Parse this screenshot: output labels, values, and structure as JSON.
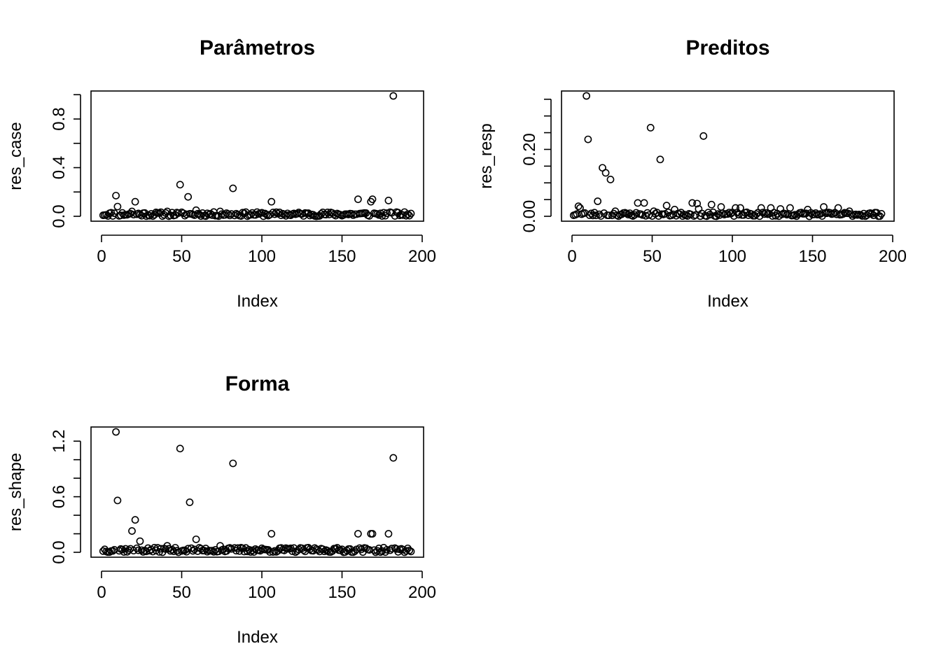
{
  "chart_data": [
    {
      "type": "scatter",
      "title": "Parâmetros",
      "xlabel": "Index",
      "ylabel": "res_case",
      "xlim": [
        0,
        193
      ],
      "ylim": [
        0,
        0.99
      ],
      "x_ticks": [
        0,
        50,
        100,
        150,
        200
      ],
      "x_tick_labels": [
        "0",
        "50",
        "100",
        "150",
        "200"
      ],
      "y_ticks": [
        0,
        0.2,
        0.4,
        0.6,
        0.8,
        1.0
      ],
      "y_tick_labels": [
        "0.0",
        "",
        "0.4",
        "",
        "0.8",
        ""
      ],
      "baseline_seed": 11,
      "baseline_max": 0.035,
      "outliers": [
        {
          "x": 9,
          "y": 0.17
        },
        {
          "x": 10,
          "y": 0.08
        },
        {
          "x": 19,
          "y": 0.04
        },
        {
          "x": 21,
          "y": 0.12
        },
        {
          "x": 41,
          "y": 0.04
        },
        {
          "x": 49,
          "y": 0.26
        },
        {
          "x": 54,
          "y": 0.16
        },
        {
          "x": 59,
          "y": 0.05
        },
        {
          "x": 74,
          "y": 0.04
        },
        {
          "x": 82,
          "y": 0.23
        },
        {
          "x": 88,
          "y": 0.03
        },
        {
          "x": 106,
          "y": 0.12
        },
        {
          "x": 160,
          "y": 0.14
        },
        {
          "x": 168,
          "y": 0.12
        },
        {
          "x": 169,
          "y": 0.14
        },
        {
          "x": 179,
          "y": 0.13
        },
        {
          "x": 182,
          "y": 0.99
        }
      ]
    },
    {
      "type": "scatter",
      "title": "Preditos",
      "xlabel": "Index",
      "ylabel": "res_resp",
      "xlim": [
        0,
        193
      ],
      "ylim": [
        0,
        0.36
      ],
      "x_ticks": [
        0,
        50,
        100,
        150,
        200
      ],
      "x_tick_labels": [
        "0",
        "50",
        "100",
        "150",
        "200"
      ],
      "y_ticks": [
        0,
        0.05,
        0.1,
        0.15,
        0.2,
        0.25,
        0.3,
        0.35
      ],
      "y_tick_labels": [
        "0.00",
        "",
        "",
        "",
        "0.20",
        "",
        "",
        ""
      ],
      "baseline_seed": 23,
      "baseline_max": 0.012,
      "outliers": [
        {
          "x": 4,
          "y": 0.03
        },
        {
          "x": 5,
          "y": 0.025
        },
        {
          "x": 9,
          "y": 0.36
        },
        {
          "x": 10,
          "y": 0.23
        },
        {
          "x": 16,
          "y": 0.045
        },
        {
          "x": 19,
          "y": 0.145
        },
        {
          "x": 21,
          "y": 0.13
        },
        {
          "x": 24,
          "y": 0.11
        },
        {
          "x": 27,
          "y": 0.015
        },
        {
          "x": 41,
          "y": 0.04
        },
        {
          "x": 45,
          "y": 0.04
        },
        {
          "x": 49,
          "y": 0.265
        },
        {
          "x": 51,
          "y": 0.015
        },
        {
          "x": 55,
          "y": 0.17
        },
        {
          "x": 59,
          "y": 0.032
        },
        {
          "x": 64,
          "y": 0.02
        },
        {
          "x": 75,
          "y": 0.04
        },
        {
          "x": 78,
          "y": 0.038
        },
        {
          "x": 79,
          "y": 0.022
        },
        {
          "x": 82,
          "y": 0.24
        },
        {
          "x": 87,
          "y": 0.035
        },
        {
          "x": 93,
          "y": 0.028
        },
        {
          "x": 102,
          "y": 0.025
        },
        {
          "x": 105,
          "y": 0.025
        },
        {
          "x": 118,
          "y": 0.025
        },
        {
          "x": 124,
          "y": 0.025
        },
        {
          "x": 130,
          "y": 0.022
        },
        {
          "x": 136,
          "y": 0.025
        },
        {
          "x": 147,
          "y": 0.02
        },
        {
          "x": 157,
          "y": 0.028
        },
        {
          "x": 166,
          "y": 0.025
        },
        {
          "x": 173,
          "y": 0.015
        }
      ]
    },
    {
      "type": "scatter",
      "title": "Forma",
      "xlabel": "Index",
      "ylabel": "res_shape",
      "xlim": [
        0,
        193
      ],
      "ylim": [
        0,
        1.3
      ],
      "x_ticks": [
        0,
        50,
        100,
        150,
        200
      ],
      "x_tick_labels": [
        "0",
        "50",
        "100",
        "150",
        "200"
      ],
      "y_ticks": [
        0,
        0.2,
        0.4,
        0.6,
        0.8,
        1.0,
        1.2
      ],
      "y_tick_labels": [
        "0.0",
        "",
        "",
        "0.6",
        "",
        "",
        "1.2"
      ],
      "baseline_seed": 37,
      "baseline_max": 0.05,
      "outliers": [
        {
          "x": 9,
          "y": 1.3
        },
        {
          "x": 10,
          "y": 0.56
        },
        {
          "x": 19,
          "y": 0.23
        },
        {
          "x": 21,
          "y": 0.35
        },
        {
          "x": 24,
          "y": 0.12
        },
        {
          "x": 41,
          "y": 0.07
        },
        {
          "x": 49,
          "y": 1.12
        },
        {
          "x": 55,
          "y": 0.54
        },
        {
          "x": 59,
          "y": 0.14
        },
        {
          "x": 74,
          "y": 0.07
        },
        {
          "x": 82,
          "y": 0.96
        },
        {
          "x": 87,
          "y": 0.05
        },
        {
          "x": 106,
          "y": 0.2
        },
        {
          "x": 160,
          "y": 0.2
        },
        {
          "x": 168,
          "y": 0.2
        },
        {
          "x": 169,
          "y": 0.2
        },
        {
          "x": 179,
          "y": 0.2
        },
        {
          "x": 182,
          "y": 1.02
        }
      ]
    }
  ]
}
